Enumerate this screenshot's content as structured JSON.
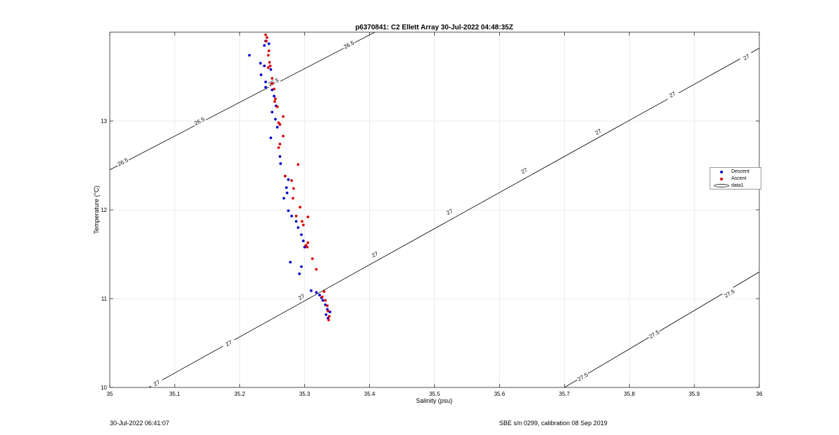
{
  "chart_data": {
    "type": "scatter",
    "title": "p6370841: C2 Ellett Array 30-Jul-2022 04:48:35Z",
    "xlabel": "Salinity (psu)",
    "ylabel": "Temperature (°C)",
    "xlim": [
      35,
      36
    ],
    "ylim": [
      10,
      14
    ],
    "xticks": [
      35,
      35.1,
      35.2,
      35.3,
      35.4,
      35.5,
      35.6,
      35.7,
      35.8,
      35.9,
      36
    ],
    "xtick_labels": [
      "35",
      "35.1",
      "35.2",
      "35.3",
      "35.4",
      "35.5",
      "35.6",
      "35.7",
      "35.8",
      "35.9",
      "36"
    ],
    "yticks": [
      10,
      11,
      12,
      13
    ],
    "ytick_labels": [
      "10",
      "11",
      "12",
      "13"
    ],
    "grid": true,
    "legend_position": "right",
    "series": [
      {
        "name": "Descent",
        "color": "#0000cc",
        "points": [
          [
            35.215,
            13.74
          ],
          [
            35.232,
            13.65
          ],
          [
            35.238,
            13.62
          ],
          [
            35.233,
            13.52
          ],
          [
            35.24,
            13.38
          ],
          [
            35.24,
            13.44
          ],
          [
            35.238,
            13.85
          ],
          [
            35.24,
            13.9
          ],
          [
            35.245,
            13.87
          ],
          [
            35.248,
            13.58
          ],
          [
            35.25,
            13.35
          ],
          [
            35.253,
            13.28
          ],
          [
            35.256,
            13.17
          ],
          [
            35.25,
            13.1
          ],
          [
            35.255,
            13.02
          ],
          [
            35.258,
            12.93
          ],
          [
            35.248,
            12.81
          ],
          [
            35.262,
            12.6
          ],
          [
            35.263,
            12.52
          ],
          [
            35.27,
            12.38
          ],
          [
            35.275,
            12.34
          ],
          [
            35.272,
            12.25
          ],
          [
            35.273,
            12.19
          ],
          [
            35.268,
            12.13
          ],
          [
            35.275,
            11.99
          ],
          [
            35.28,
            11.93
          ],
          [
            35.287,
            11.87
          ],
          [
            35.29,
            11.8
          ],
          [
            35.295,
            11.72
          ],
          [
            35.298,
            11.65
          ],
          [
            35.3,
            11.58
          ],
          [
            35.278,
            11.41
          ],
          [
            35.295,
            11.36
          ],
          [
            35.292,
            11.28
          ],
          [
            35.31,
            11.09
          ],
          [
            35.318,
            11.07
          ],
          [
            35.323,
            11.04
          ],
          [
            35.326,
            11.01
          ],
          [
            35.328,
            10.98
          ],
          [
            35.332,
            10.93
          ],
          [
            35.335,
            10.88
          ],
          [
            35.339,
            10.85
          ],
          [
            35.333,
            10.82
          ],
          [
            35.336,
            10.78
          ]
        ]
      },
      {
        "name": "Ascent",
        "color": "#dd0000",
        "points": [
          [
            35.24,
            13.97
          ],
          [
            35.242,
            13.94
          ],
          [
            35.241,
            13.9
          ],
          [
            35.245,
            13.79
          ],
          [
            35.244,
            13.74
          ],
          [
            35.246,
            13.66
          ],
          [
            35.247,
            13.62
          ],
          [
            35.244,
            13.6
          ],
          [
            35.25,
            13.48
          ],
          [
            35.25,
            13.42
          ],
          [
            35.253,
            13.36
          ],
          [
            35.255,
            13.25
          ],
          [
            35.254,
            13.22
          ],
          [
            35.258,
            13.16
          ],
          [
            35.26,
            12.98
          ],
          [
            35.262,
            12.96
          ],
          [
            35.267,
            13.05
          ],
          [
            35.267,
            12.83
          ],
          [
            35.262,
            12.74
          ],
          [
            35.26,
            12.7
          ],
          [
            35.29,
            12.51
          ],
          [
            35.27,
            12.38
          ],
          [
            35.28,
            12.33
          ],
          [
            35.283,
            12.24
          ],
          [
            35.282,
            12.13
          ],
          [
            35.293,
            12.03
          ],
          [
            35.287,
            11.93
          ],
          [
            35.305,
            11.92
          ],
          [
            35.296,
            11.87
          ],
          [
            35.298,
            11.83
          ],
          [
            35.305,
            11.63
          ],
          [
            35.302,
            11.6
          ],
          [
            35.304,
            11.58
          ],
          [
            35.312,
            11.45
          ],
          [
            35.318,
            11.33
          ],
          [
            35.33,
            11.08
          ],
          [
            35.327,
            11.02
          ],
          [
            35.332,
            10.98
          ],
          [
            35.335,
            10.92
          ],
          [
            35.336,
            10.86
          ],
          [
            35.338,
            10.8
          ],
          [
            35.337,
            10.76
          ]
        ]
      }
    ],
    "contours": {
      "name": "data1",
      "color": "#000000",
      "lines": [
        {
          "level": "26.5",
          "points": [
            [
              35,
              12.45
            ],
            [
              35.408,
              14
            ]
          ],
          "labels": [
            [
              35.02,
              12.54
            ],
            [
              35.138,
              13.0
            ],
            [
              35.252,
              13.44
            ],
            [
              35.368,
              13.86
            ]
          ]
        },
        {
          "level": "27",
          "points": [
            [
              35.06,
              10
            ],
            [
              36,
              13.82
            ]
          ],
          "labels": [
            [
              35.072,
              10.05
            ],
            [
              35.183,
              10.5
            ],
            [
              35.295,
              11.02
            ],
            [
              35.408,
              11.5
            ],
            [
              35.523,
              11.98
            ],
            [
              35.638,
              12.44
            ],
            [
              35.752,
              12.88
            ],
            [
              35.866,
              13.3
            ],
            [
              35.98,
              13.72
            ]
          ]
        },
        {
          "level": "27.5",
          "points": [
            [
              35.7,
              10
            ],
            [
              36,
              11.3
            ]
          ],
          "labels": [
            [
              35.728,
              10.12
            ],
            [
              35.838,
              10.6
            ],
            [
              35.954,
              11.06
            ]
          ]
        }
      ]
    }
  },
  "footer": {
    "timestamp": "30-Jul-2022 06:41:07",
    "calibration": "SBE s/n 0299, calibration 08 Sep 2019"
  }
}
